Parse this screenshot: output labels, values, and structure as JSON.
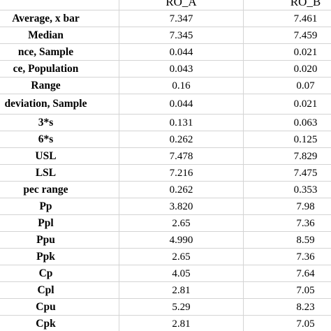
{
  "table": {
    "header": {
      "label": "",
      "col_a": "RO_A",
      "col_b": "RO_B"
    },
    "rows": [
      {
        "label": "Average, x bar",
        "a": "7.347",
        "b": "7.461"
      },
      {
        "label": "Median",
        "a": "7.345",
        "b": "7.459"
      },
      {
        "label": "nce, Sample",
        "a": "0.044",
        "b": "0.021"
      },
      {
        "label": "ce, Population",
        "a": "0.043",
        "b": "0.020"
      },
      {
        "label": "Range",
        "a": "0.16",
        "b": "0.07"
      },
      {
        "label": "deviation, Sample",
        "a": "0.044",
        "b": "0.021"
      },
      {
        "label": "3*s",
        "a": "0.131",
        "b": "0.063"
      },
      {
        "label": "6*s",
        "a": "0.262",
        "b": "0.125"
      },
      {
        "label": "USL",
        "a": "7.478",
        "b": "7.829"
      },
      {
        "label": "LSL",
        "a": "7.216",
        "b": "7.475"
      },
      {
        "label": "pec range",
        "a": "0.262",
        "b": "0.353"
      },
      {
        "label": "Pp",
        "a": "3.820",
        "b": "7.98"
      },
      {
        "label": "Ppl",
        "a": "2.65",
        "b": "7.36"
      },
      {
        "label": "Ppu",
        "a": "4.990",
        "b": "8.59"
      },
      {
        "label": "Ppk",
        "a": "2.65",
        "b": "7.36"
      },
      {
        "label": "Cp",
        "a": "4.05",
        "b": "7.64"
      },
      {
        "label": "Cpl",
        "a": "2.81",
        "b": "7.05"
      },
      {
        "label": "Cpu",
        "a": "5.29",
        "b": "8.23"
      },
      {
        "label": "Cpk",
        "a": "2.81",
        "b": "7.05"
      }
    ]
  }
}
